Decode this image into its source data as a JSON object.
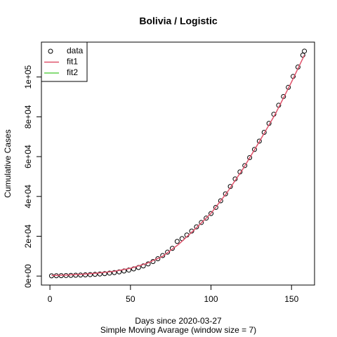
{
  "chart_data": {
    "type": "scatter",
    "title": "Bolivia / Logistic",
    "xlabel": "Days since 2020-03-27",
    "subtitle": "Simple Moving Avarage (window size = 7)",
    "ylabel": "Cumulative Cases",
    "xlim": [
      -5.28,
      164.28
    ],
    "ylim": [
      -4520,
      117520
    ],
    "xticks": [
      0,
      50,
      100,
      150
    ],
    "yticks": [
      {
        "value": 0,
        "label": "0e+00"
      },
      {
        "value": 20000,
        "label": "2e+04"
      },
      {
        "value": 40000,
        "label": "4e+04"
      },
      {
        "value": 60000,
        "label": "6e+04"
      },
      {
        "value": 80000,
        "label": "8e+04"
      },
      {
        "value": 100000,
        "label": "1e+05"
      }
    ],
    "legend": "top-left",
    "series": [
      {
        "name": "data",
        "kind": "points",
        "color": "#000000",
        "x": [
          1,
          4,
          7,
          10,
          13,
          16,
          19,
          22,
          25,
          28,
          31,
          34,
          37,
          40,
          43,
          46,
          49,
          52,
          55,
          58,
          61,
          64,
          67,
          70,
          73,
          76,
          79,
          82,
          85,
          88,
          91,
          94,
          97,
          100,
          103,
          106,
          109,
          112,
          115,
          118,
          121,
          124,
          127,
          130,
          133,
          136,
          139,
          142,
          145,
          148,
          151,
          154,
          157,
          158
        ],
        "values": [
          100,
          150,
          200,
          260,
          330,
          410,
          500,
          600,
          720,
          860,
          1020,
          1220,
          1460,
          1750,
          2100,
          2520,
          3000,
          3600,
          4300,
          5100,
          6100,
          7300,
          8700,
          10300,
          12000,
          13900,
          17400,
          18800,
          20600,
          22600,
          24700,
          26900,
          29100,
          31400,
          34500,
          37800,
          41300,
          45000,
          48800,
          52300,
          55500,
          59500,
          63600,
          67800,
          72200,
          76700,
          81300,
          85800,
          90200,
          94800,
          100300,
          105000,
          111000,
          113000
        ]
      },
      {
        "name": "fit1",
        "kind": "line",
        "color": "#DF536B",
        "x": [
          1,
          10,
          20,
          30,
          40,
          50,
          60,
          70,
          80,
          90,
          100,
          110,
          120,
          130,
          140,
          150,
          158
        ],
        "values": [
          300,
          500,
          900,
          1500,
          2400,
          3900,
          6300,
          9900,
          16000,
          23500,
          31500,
          42000,
          54000,
          67500,
          81500,
          97500,
          111000
        ]
      },
      {
        "name": "fit2",
        "kind": "line",
        "color": "#61D04F",
        "x": [],
        "values": []
      }
    ]
  }
}
